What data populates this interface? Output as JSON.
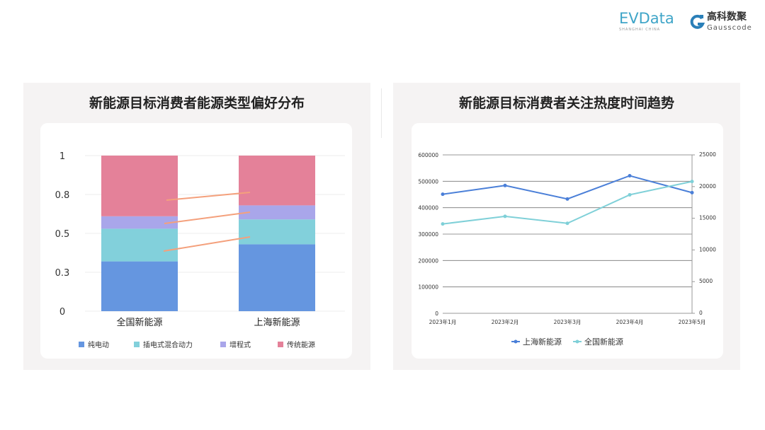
{
  "header": {
    "logo_evdata": "EVData",
    "logo_evdata_sub": "SHANGHAI CHINA",
    "logo_gauss_cn": "高科数聚",
    "logo_gauss_en": "Gausscode"
  },
  "colors": {
    "pure_ev": "#6596e0",
    "phev": "#82d0db",
    "erev": "#a9a6ea",
    "ice": "#e48199",
    "shanghai": "#4a7fd8",
    "national": "#7fd0d8",
    "connector": "#f4a07c",
    "panel_bg": "#f5f3f3"
  },
  "chart_data": [
    {
      "type": "bar",
      "stacked": true,
      "title": "新能源目标消费者能源类型偏好分布",
      "categories": [
        "全国新能源",
        "上海新能源"
      ],
      "series": [
        {
          "name": "纯电动",
          "values": [
            0.32,
            0.43
          ]
        },
        {
          "name": "插电式混合动力",
          "values": [
            0.21,
            0.16
          ]
        },
        {
          "name": "增程式",
          "values": [
            0.08,
            0.09
          ]
        },
        {
          "name": "传统能源",
          "values": [
            0.39,
            0.32
          ]
        }
      ],
      "yticks": [
        "0",
        "0.3",
        "0.5",
        "0.8",
        "1"
      ],
      "ylim": [
        0,
        1
      ],
      "grid": true,
      "legend": "bottom"
    },
    {
      "type": "line",
      "title": "新能源目标消费者关注热度时间趋势",
      "x": [
        "2023年1月",
        "2023年2月",
        "2023年3月",
        "2023年4月",
        "2023年5月"
      ],
      "series": [
        {
          "name": "上海新能源",
          "axis": "left",
          "values": [
            451000,
            484000,
            433000,
            521000,
            457000
          ]
        },
        {
          "name": "全国新能源",
          "axis": "right",
          "values": [
            14100,
            15300,
            14200,
            18700,
            20800
          ]
        }
      ],
      "yticks_left": [
        "0",
        "100000",
        "200000",
        "300000",
        "400000",
        "500000",
        "600000"
      ],
      "yticks_right": [
        "0",
        "5000",
        "10000",
        "15000",
        "20000",
        "25000"
      ],
      "ylim_left": [
        0,
        600000
      ],
      "ylim_right": [
        0,
        25000
      ],
      "grid": true,
      "legend": "bottom"
    }
  ]
}
